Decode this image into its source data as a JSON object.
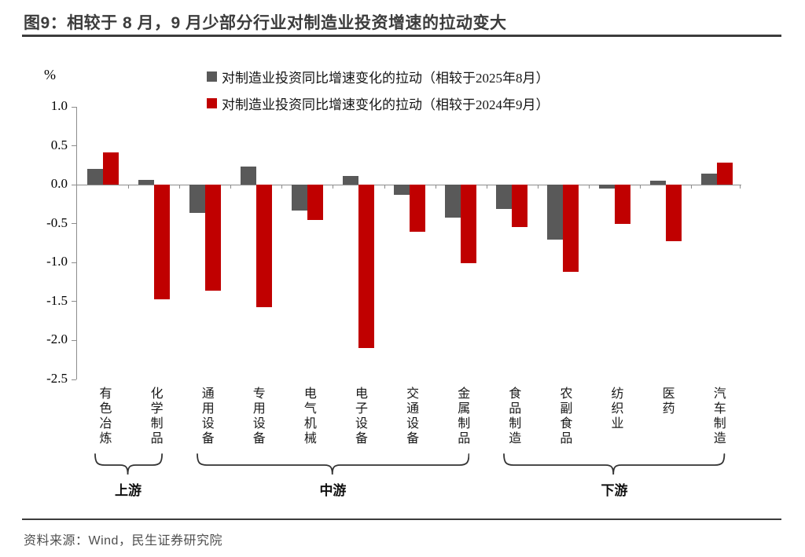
{
  "header": {
    "title": "图9：相较于 8 月，9 月少部分行业对制造业投资增速的拉动变大"
  },
  "footer": {
    "source": "资料来源：Wind，民生证券研究院"
  },
  "colors": {
    "axis": "#8c8c8c",
    "rule": "#3c3c3c",
    "series_aug": "#595959",
    "series_sep": "#c00000"
  },
  "chart_data": {
    "type": "bar",
    "unit_label": "%",
    "categories": [
      "有色冶炼",
      "化学制品",
      "通用设备",
      "专用设备",
      "电气机械",
      "电子设备",
      "交通设备",
      "金属制品",
      "食品制造",
      "农副食品",
      "纺织业",
      "医药",
      "汽车制造"
    ],
    "series": [
      {
        "name": "对制造业投资同比增速变化的拉动（相较于2025年8月）",
        "color": "#595959",
        "values": [
          0.2,
          0.06,
          -0.36,
          0.23,
          -0.33,
          0.11,
          -0.13,
          -0.42,
          -0.31,
          -0.7,
          -0.05,
          0.05,
          0.14
        ]
      },
      {
        "name": "对制造业投资同比增速变化的拉动（相较于2024年9月）",
        "color": "#c00000",
        "values": [
          0.42,
          -1.47,
          -1.36,
          -1.57,
          -0.45,
          -2.1,
          -0.6,
          -1.01,
          -0.54,
          -1.12,
          -0.5,
          -0.72,
          0.28
        ]
      }
    ],
    "ylim": [
      -2.5,
      1.0
    ],
    "ytick_step": 0.5,
    "grid": false,
    "legend_position": "top",
    "groups": [
      {
        "label": "上游",
        "start": 0,
        "end": 1
      },
      {
        "label": "中游",
        "start": 2,
        "end": 7
      },
      {
        "label": "下游",
        "start": 8,
        "end": 12
      }
    ]
  }
}
